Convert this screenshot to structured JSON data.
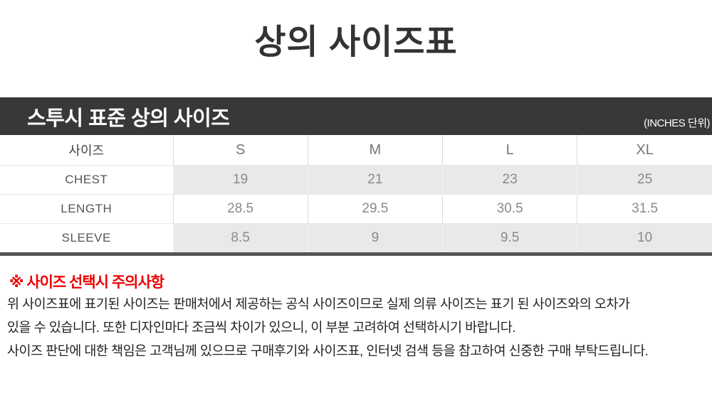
{
  "page": {
    "title": "상의 사이즈표"
  },
  "size_chart": {
    "header_bar": {
      "title": "스투시 표준 상의 사이즈",
      "unit_label": "(INCHES 단위)"
    },
    "table": {
      "corner_label": "사이즈",
      "columns": [
        "S",
        "M",
        "L",
        "XL"
      ],
      "rows": [
        {
          "label": "CHEST",
          "values": [
            "19",
            "21",
            "23",
            "25"
          ]
        },
        {
          "label": "LENGTH",
          "values": [
            "28.5",
            "29.5",
            "30.5",
            "31.5"
          ]
        },
        {
          "label": "SLEEVE",
          "values": [
            "8.5",
            "9",
            "9.5",
            "10"
          ]
        }
      ]
    }
  },
  "notice": {
    "heading": "※ 사이즈 선택시 주의사항",
    "lines": [
      "위 사이즈표에 표기된 사이즈는 판매처에서 제공하는 공식 사이즈이므로 실제 의류 사이즈는 표기 된 사이즈와의 오차가",
      "있을 수 있습니다. 또한 디자인마다 조금씩 차이가 있으니, 이 부분 고려하여 선택하시기 바랍니다.",
      "사이즈 판단에 대한 책임은 고객님께 있으므로 구매후기와 사이즈표, 인터넷 검색 등을 참고하여 신중한 구매 부탁드립니다."
    ]
  },
  "colors": {
    "header_bar_bg": "#383838",
    "header_bar_text": "#ffffff",
    "shade_row_bg": "#e9e9e9",
    "table_bottom_border": "#555555",
    "notice_heading": "#ee0000",
    "title_text": "#333333"
  }
}
